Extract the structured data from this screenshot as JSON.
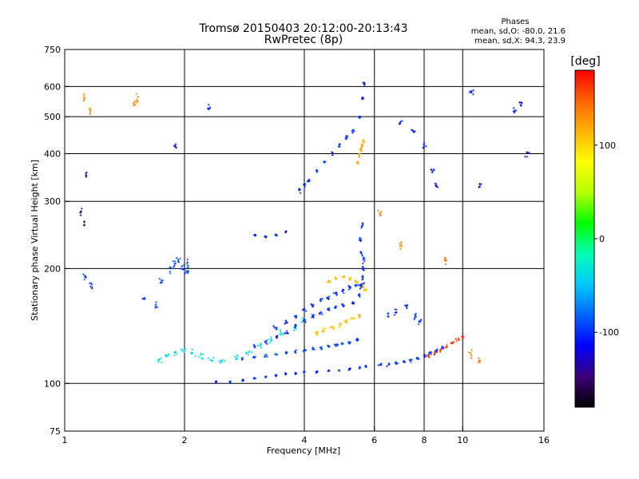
{
  "chart_data": {
    "type": "scatter",
    "title": "Tromsø 20150403 20:12:00-20:13:43",
    "subtitle": "RwPretec (8p)",
    "xlabel": "Frequency [MHz]",
    "ylabel": "Stationary phase Virtual Height [km]",
    "xscale": "log",
    "yscale": "log",
    "xlim": [
      1,
      16
    ],
    "ylim": [
      75,
      750
    ],
    "xticks": [
      1,
      2,
      4,
      6,
      8,
      10,
      16
    ],
    "xtick_labels": [
      "1",
      "2",
      "4",
      "6",
      "8",
      "10",
      "16"
    ],
    "yticks": [
      75,
      100,
      200,
      300,
      400,
      500,
      600,
      750
    ],
    "ytick_labels": [
      "75",
      "100",
      "200",
      "300",
      "400",
      "500",
      "600",
      "750"
    ],
    "x_gridlines": [
      2,
      4,
      6,
      8,
      10
    ],
    "y_gridlines": [
      100,
      200,
      300,
      400,
      500,
      600
    ],
    "grid": true,
    "phases": {
      "heading": "Phases",
      "o_stats": "mean, sd,O: -80.0, 21.6",
      "x_stats": "mean, sd,X:  94.3, 23.9"
    },
    "colorbar": {
      "unit": "[deg]",
      "range": [
        -180,
        180
      ],
      "ticks": [
        100,
        0,
        -100
      ],
      "tick_labels": [
        "100",
        "0",
        "-100"
      ],
      "colors": [
        "#000000",
        "#3c0078",
        "#0000ff",
        "#0064ff",
        "#00c8ff",
        "#00ffb4",
        "#00ff00",
        "#b4ff00",
        "#ffff00",
        "#ffb400",
        "#ff6400",
        "#ff0000"
      ]
    },
    "point_sets": [
      {
        "x": [
          1.12,
          1.16,
          1.58,
          1.7,
          1.75,
          1.85,
          1.88,
          1.93,
          1.98,
          2.02,
          2.05
        ],
        "y": [
          190,
          180,
          165,
          160,
          185,
          200,
          205,
          210,
          200,
          195,
          205
        ],
        "phase": -95,
        "spread": [
          0.02,
          0.04
        ]
      },
      {
        "x": [
          1.72,
          1.8,
          1.9,
          2.0,
          2.1,
          2.2,
          2.35,
          2.5,
          2.7,
          2.9,
          3.1,
          3.3,
          3.5,
          3.8,
          4.0
        ],
        "y": [
          115,
          118,
          120,
          122,
          120,
          118,
          116,
          115,
          117,
          120,
          125,
          130,
          135,
          140,
          145
        ],
        "phase": -40,
        "spread": [
          0.03,
          0.03
        ]
      },
      {
        "x": [
          2.4,
          2.6,
          2.8,
          3.0,
          3.2,
          3.4,
          3.6,
          3.8,
          4.0,
          4.3,
          4.6,
          4.9,
          5.2,
          5.5,
          5.7
        ],
        "y": [
          101,
          101,
          102,
          103,
          104,
          105,
          106,
          106,
          107,
          107,
          108,
          108,
          109,
          110,
          111
        ],
        "phase": -100,
        "spread": [
          0.01,
          0.01
        ]
      },
      {
        "x": [
          2.8,
          3.0,
          3.2,
          3.4,
          3.6,
          3.8,
          4.0,
          4.2,
          4.4,
          4.6,
          4.8,
          5.0,
          5.2,
          5.4
        ],
        "y": [
          116,
          117,
          118,
          119,
          120,
          121,
          122,
          123,
          124,
          125,
          126,
          127,
          128,
          130
        ],
        "phase": -90,
        "spread": [
          0.015,
          0.015
        ]
      },
      {
        "x": [
          3.0,
          3.2,
          3.4,
          3.6,
          3.8,
          4.0,
          4.2,
          4.4,
          4.6,
          4.8,
          5.0,
          5.3
        ],
        "y": [
          125,
          128,
          132,
          136,
          141,
          146,
          150,
          153,
          156,
          158,
          160,
          163
        ],
        "phase": -100,
        "spread": [
          0.015,
          0.02
        ]
      },
      {
        "x": [
          3.4,
          3.6,
          3.8,
          4.0,
          4.2,
          4.4,
          4.6,
          4.8,
          5.0,
          5.2,
          5.4,
          5.6
        ],
        "y": [
          140,
          145,
          150,
          156,
          160,
          165,
          168,
          172,
          175,
          178,
          180,
          182
        ],
        "phase": -100,
        "spread": [
          0.02,
          0.02
        ]
      },
      {
        "x": [
          4.3,
          4.5,
          4.7,
          4.9,
          5.1,
          5.3,
          5.5
        ],
        "y": [
          135,
          138,
          140,
          142,
          145,
          148,
          150
        ],
        "phase": 110,
        "spread": [
          0.02,
          0.02
        ]
      },
      {
        "x": [
          4.6,
          4.8,
          5.0,
          5.2,
          5.4,
          5.6,
          5.7
        ],
        "y": [
          185,
          188,
          190,
          188,
          185,
          180,
          175
        ],
        "phase": 110,
        "spread": [
          0.02,
          0.02
        ]
      },
      {
        "x": [
          5.5,
          5.55,
          5.6,
          5.62,
          5.65,
          5.58,
          5.52,
          5.6
        ],
        "y": [
          170,
          180,
          190,
          200,
          210,
          220,
          240,
          260
        ],
        "phase": -100,
        "spread": [
          0.01,
          0.04
        ]
      },
      {
        "x": [
          3.9,
          4.0,
          4.1,
          4.3,
          4.5,
          4.7,
          4.9,
          5.1,
          5.3,
          5.5,
          5.6,
          5.65
        ],
        "y": [
          320,
          330,
          340,
          360,
          380,
          400,
          420,
          440,
          460,
          500,
          560,
          610
        ],
        "phase": -100,
        "spread": [
          0.01,
          0.02
        ]
      },
      {
        "x": [
          5.45,
          5.5,
          5.55,
          5.6,
          5.65
        ],
        "y": [
          380,
          395,
          410,
          420,
          430
        ],
        "phase": 115,
        "spread": [
          0.01,
          0.02
        ]
      },
      {
        "x": [
          3.0,
          3.2,
          3.4,
          3.6
        ],
        "y": [
          245,
          242,
          245,
          250
        ],
        "phase": -100,
        "spread": [
          0.01,
          0.01
        ]
      },
      {
        "x": [
          6.2,
          6.5,
          6.8,
          7.1,
          7.4,
          7.7,
          8.0,
          8.3,
          8.6,
          8.9
        ],
        "y": [
          112,
          112,
          113,
          114,
          115,
          116,
          118,
          120,
          122,
          124
        ],
        "phase": -100,
        "spread": [
          0.015,
          0.015
        ]
      },
      {
        "x": [
          8.2,
          8.5,
          8.8,
          9.1,
          9.4,
          9.7,
          10.0
        ],
        "y": [
          118,
          120,
          122,
          125,
          128,
          130,
          132
        ],
        "phase": 160,
        "spread": [
          0.015,
          0.02
        ]
      },
      {
        "x": [
          6.5,
          6.8,
          7.2,
          7.6,
          7.8
        ],
        "y": [
          150,
          155,
          160,
          150,
          145
        ],
        "phase": -100,
        "spread": [
          0.02,
          0.04
        ]
      },
      {
        "x": [
          1.12,
          1.16,
          1.5,
          1.52
        ],
        "y": [
          560,
          520,
          540,
          560
        ],
        "phase": 130,
        "spread": [
          0.01,
          0.05
        ]
      },
      {
        "x": [
          1.12,
          1.1,
          1.13
        ],
        "y": [
          260,
          280,
          350
        ],
        "phase": -150,
        "spread": [
          0.01,
          0.05
        ]
      },
      {
        "x": [
          7.0,
          7.5,
          8.0,
          8.4,
          8.6,
          10.5,
          11.0,
          13.5,
          14.0,
          14.5,
          1.9,
          2.3
        ],
        "y": [
          480,
          460,
          420,
          360,
          330,
          580,
          330,
          520,
          540,
          400,
          420,
          530
        ],
        "phase": -110,
        "spread": [
          0.02,
          0.03
        ]
      },
      {
        "x": [
          6.2,
          7.0,
          9.0,
          10.5,
          11.0
        ],
        "y": [
          280,
          230,
          210,
          120,
          115
        ],
        "phase": 140,
        "spread": [
          0.02,
          0.04
        ]
      }
    ]
  }
}
